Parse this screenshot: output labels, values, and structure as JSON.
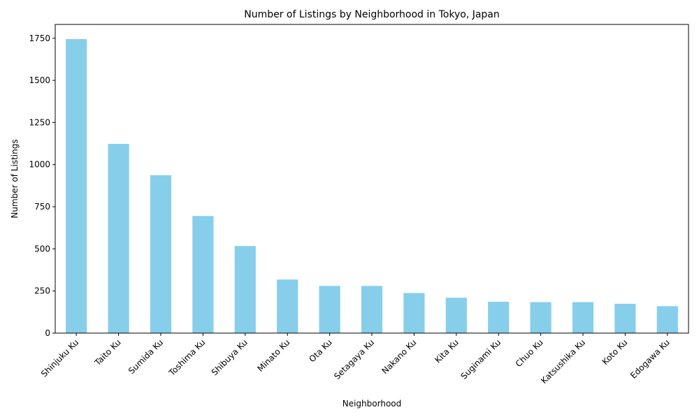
{
  "chart_data": {
    "type": "bar",
    "title": "Number of Listings by Neighborhood in Tokyo, Japan",
    "xlabel": "Neighborhood",
    "ylabel": "Number of Listings",
    "categories": [
      "Shinjuku Ku",
      "Taito Ku",
      "Sumida Ku",
      "Toshima Ku",
      "Shibuya Ku",
      "Minato Ku",
      "Ota Ku",
      "Setagaya Ku",
      "Nakano Ku",
      "Kita Ku",
      "Suginami Ku",
      "Chuo Ku",
      "Katsushika Ku",
      "Koto Ku",
      "Edogawa Ku"
    ],
    "values": [
      1745,
      1123,
      937,
      695,
      517,
      318,
      280,
      280,
      238,
      210,
      186,
      184,
      184,
      174,
      160
    ],
    "ylim": [
      0,
      1832
    ],
    "yticks": [
      0,
      250,
      500,
      750,
      1000,
      1250,
      1500,
      1750
    ],
    "bar_color": "#87ceeb",
    "grid": false,
    "legend": false
  }
}
